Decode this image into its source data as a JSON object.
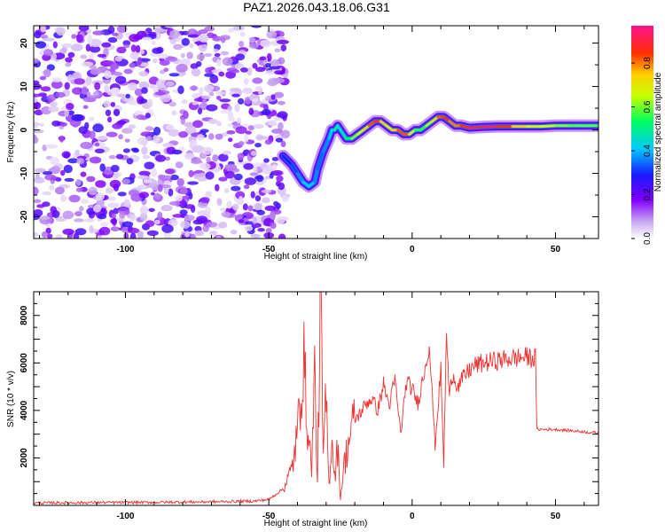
{
  "title": "PAZ1.2026.043.18.06.G31",
  "chart_data": [
    {
      "type": "heatmap",
      "xlabel": "Height of straight line (km)",
      "ylabel": "Frequency (Hz)",
      "xlim": [
        -132,
        65
      ],
      "ylim": [
        -25,
        24
      ],
      "xticks": [
        -100,
        -50,
        0,
        50
      ],
      "yticks": [
        -20,
        -10,
        0,
        10,
        20
      ],
      "colorbar": {
        "label": "Normalized spectral amplitude",
        "range": [
          0.0,
          0.97
        ],
        "ticks": [
          "0.0",
          "0.2",
          "0.4",
          "0.6",
          "0.8"
        ],
        "tick_values": [
          0.0,
          0.2,
          0.4,
          0.6,
          0.8
        ],
        "colormap": "rainbow (white-violet-blue-cyan-green-yellow-orange-red-magenta)"
      },
      "ridge": {
        "x": [
          -45,
          -42,
          -40,
          -38,
          -36,
          -34,
          -33,
          -31,
          -29,
          -28,
          -27,
          -26,
          -25,
          -23,
          -21,
          -19,
          -17,
          -15,
          -13,
          -11,
          -9,
          -7,
          -5,
          -3,
          -1,
          1,
          3,
          5,
          7,
          9,
          11,
          13,
          15,
          17,
          20,
          25,
          30,
          35,
          40,
          45,
          50,
          55,
          60,
          65
        ],
        "y": [
          -6,
          -8,
          -10,
          -12,
          -13,
          -12,
          -9,
          -5,
          -2,
          0,
          0,
          1,
          0,
          -2,
          -2,
          -1,
          0,
          1,
          2,
          2,
          1,
          0,
          0,
          -1,
          -1,
          0,
          0,
          1,
          2,
          3,
          3,
          2,
          1,
          1,
          0.5,
          0.7,
          0.8,
          0.8,
          0.8,
          0.8,
          1,
          1,
          1,
          1
        ],
        "amplitude": [
          0.3,
          0.3,
          0.35,
          0.4,
          0.45,
          0.4,
          0.35,
          0.35,
          0.4,
          0.45,
          0.5,
          0.5,
          0.45,
          0.5,
          0.6,
          0.65,
          0.7,
          0.8,
          0.9,
          0.85,
          0.7,
          0.75,
          0.8,
          0.9,
          0.8,
          0.6,
          0.55,
          0.6,
          0.7,
          0.8,
          0.9,
          0.85,
          0.8,
          0.85,
          0.9,
          0.97,
          0.9,
          0.85,
          0.7,
          0.7,
          0.65,
          0.6,
          0.6,
          0.6
        ]
      },
      "noise_region": {
        "x_range": [
          -132,
          -44
        ],
        "y_range": [
          -25,
          24
        ],
        "amplitude_range": [
          0.0,
          0.25
        ]
      }
    },
    {
      "type": "line",
      "xlabel": "Height of straight line (km)",
      "ylabel": "SNR (10 * v/v)",
      "xlim": [
        -132,
        65
      ],
      "ylim": [
        0,
        9000
      ],
      "xticks": [
        -100,
        -50,
        0,
        50
      ],
      "yticks": [
        2000,
        4000,
        6000,
        8000
      ],
      "series": [
        {
          "color": "#ee3333",
          "x": [
            -132,
            -110,
            -90,
            -70,
            -55,
            -50,
            -45,
            -42,
            -40,
            -38,
            -36,
            -35,
            -34,
            -33,
            -32,
            -31,
            -30,
            -29,
            -28,
            -27,
            -26,
            -25,
            -24,
            -22,
            -20,
            -18,
            -16,
            -14,
            -12,
            -10,
            -8,
            -6,
            -4,
            -2,
            0,
            2,
            4,
            6,
            8,
            10,
            11,
            12,
            13,
            14,
            16,
            18,
            20,
            22,
            25,
            30,
            35,
            40,
            43,
            43.5,
            45,
            50,
            55,
            60,
            65
          ],
          "y": [
            100,
            120,
            130,
            150,
            180,
            250,
            700,
            1500,
            3000,
            6300,
            2500,
            1800,
            5500,
            900,
            9000,
            2000,
            4500,
            800,
            3000,
            1200,
            2500,
            300,
            1500,
            2800,
            3600,
            3900,
            4300,
            4500,
            4000,
            5100,
            4200,
            5300,
            3000,
            5200,
            4900,
            4300,
            5500,
            6800,
            2500,
            5700,
            1700,
            7300,
            4500,
            5600,
            5000,
            5400,
            5700,
            5900,
            6000,
            6100,
            6200,
            6250,
            6200,
            3200,
            3200,
            3200,
            3150,
            3100,
            3050
          ]
        }
      ]
    }
  ]
}
